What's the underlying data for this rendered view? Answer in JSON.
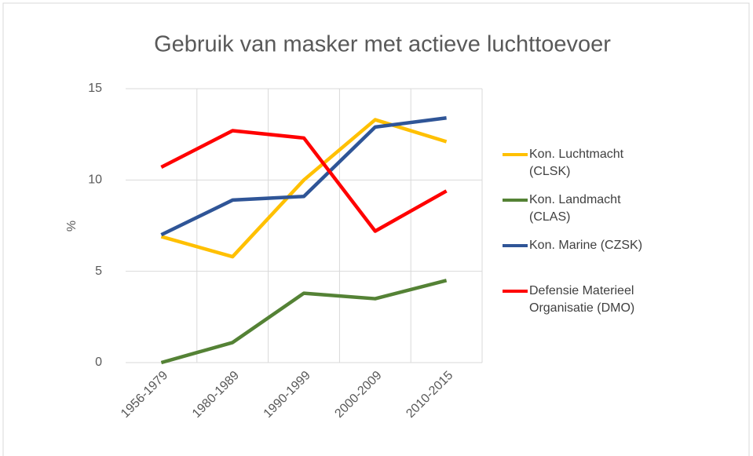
{
  "chart_data": {
    "type": "line",
    "title": "Gebruik van masker met actieve luchttoevoer",
    "y_label": "%",
    "categories": [
      "1956-1979",
      "1980-1989",
      "1990-1999",
      "2000-2009",
      "2010-2015"
    ],
    "series": [
      {
        "name": "Kon. Luchtmacht (CLSK)",
        "color": "#ffc000",
        "values": [
          6.9,
          5.8,
          10.0,
          13.3,
          12.1
        ]
      },
      {
        "name": "Kon. Landmacht (CLAS)",
        "color": "#548235",
        "values": [
          0,
          1.1,
          3.8,
          3.5,
          4.5
        ]
      },
      {
        "name": "Kon. Marine (CZSK)",
        "color": "#2f5597",
        "values": [
          7.0,
          8.9,
          9.1,
          12.9,
          13.4
        ]
      },
      {
        "name": "Defensie Materieel Organisatie (DMO)",
        "color": "#ff0000",
        "values": [
          10.7,
          12.7,
          12.3,
          7.2,
          9.4
        ]
      }
    ],
    "ylim": [
      0,
      15
    ],
    "yticks": [
      0,
      5,
      10,
      15
    ],
    "grid": true,
    "legend": "right"
  }
}
